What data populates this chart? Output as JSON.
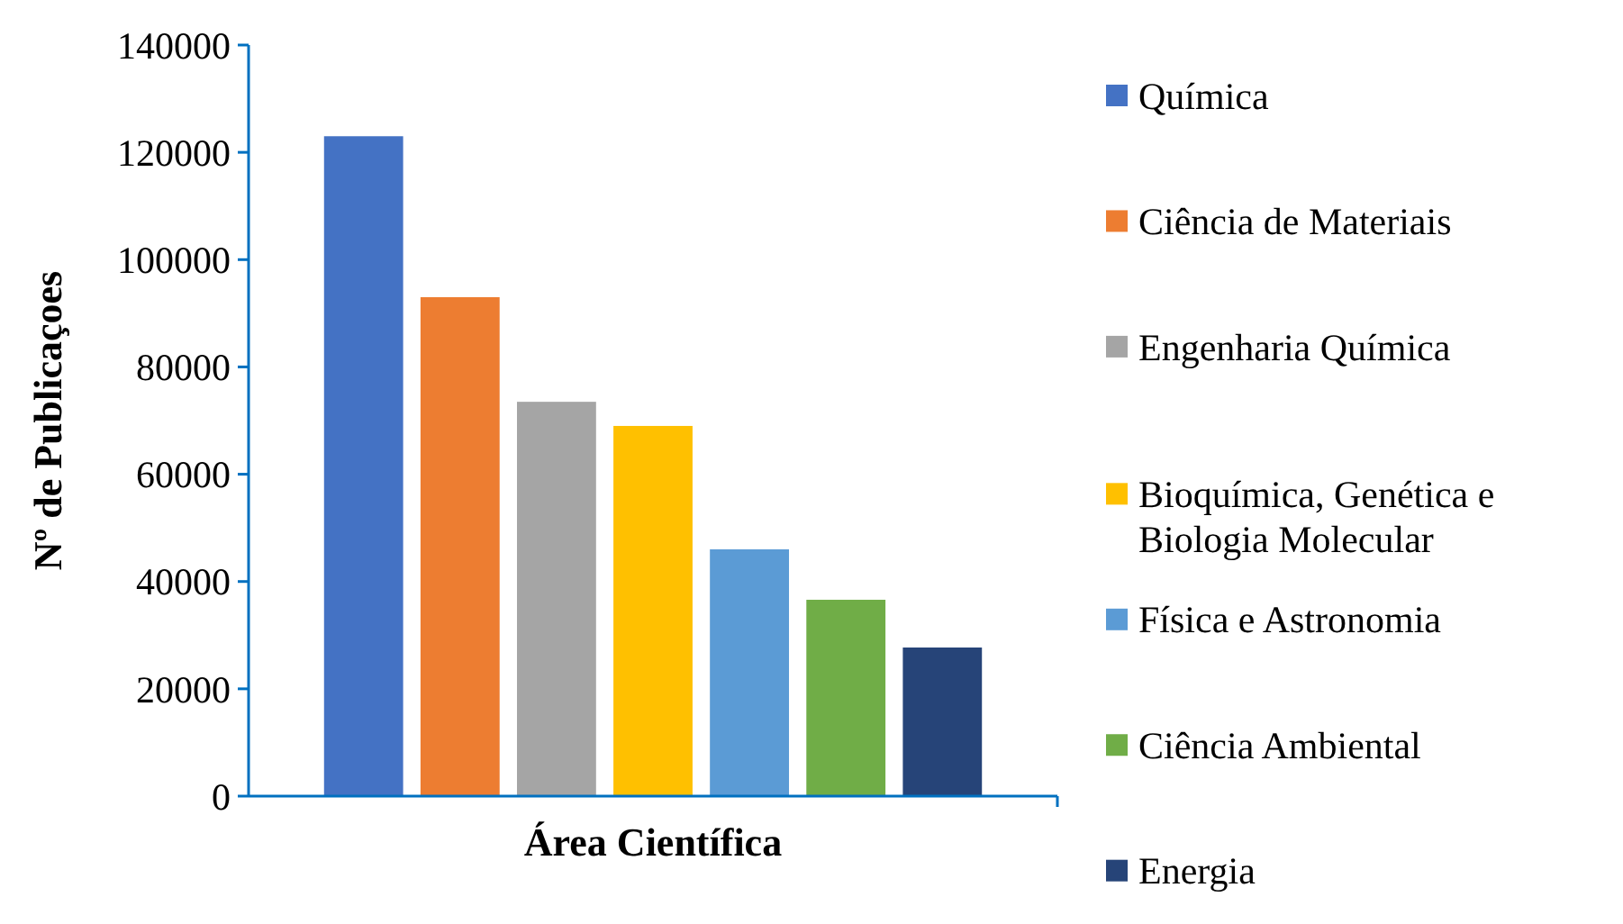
{
  "chart_data": {
    "type": "bar",
    "xlabel": "Área Científica",
    "ylabel": "Nº de Publicaçoes",
    "categories": [
      null
    ],
    "series": [
      {
        "name": "Química",
        "color": "#4472c4",
        "values": [
          123000
        ]
      },
      {
        "name": "Ciência de Materiais",
        "color": "#ed7d31",
        "values": [
          93000
        ]
      },
      {
        "name": "Engenharia Química",
        "color": "#a5a5a5",
        "values": [
          73500
        ]
      },
      {
        "name": "Bioquímica, Genética e Biologia Molecular",
        "color": "#ffc000",
        "values": [
          69000
        ]
      },
      {
        "name": "Física e Astronomia",
        "color": "#5b9bd5",
        "values": [
          46000
        ]
      },
      {
        "name": "Ciência Ambiental",
        "color": "#70ad47",
        "values": [
          36600
        ]
      },
      {
        "name": "Energia",
        "color": "#264478",
        "values": [
          27700
        ]
      }
    ],
    "ylim": [
      0,
      140000
    ],
    "yticks": [
      0,
      20000,
      40000,
      60000,
      80000,
      100000,
      120000,
      140000
    ],
    "grid": false,
    "legend": "right"
  }
}
